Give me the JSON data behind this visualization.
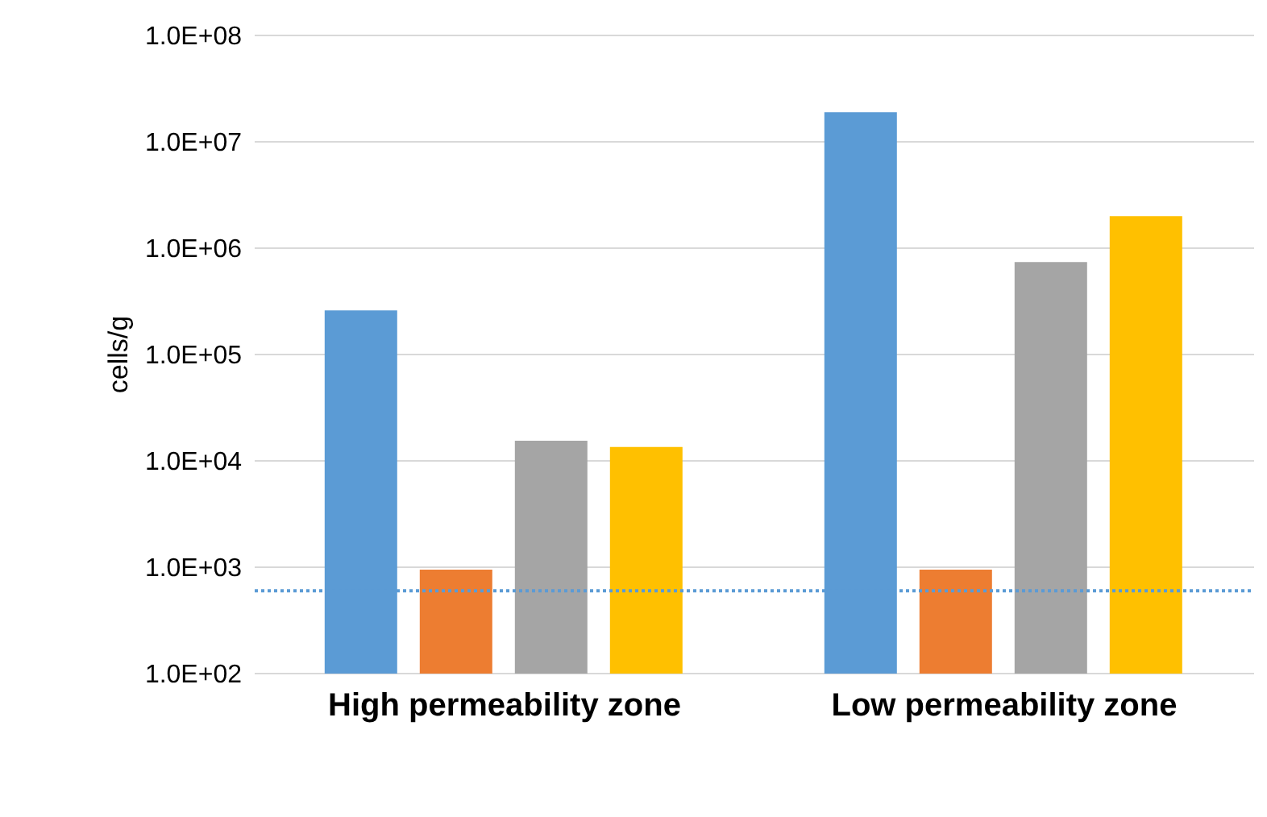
{
  "chart_data": {
    "type": "bar",
    "ylabel": "cells/g",
    "log": true,
    "grid": "y",
    "legend": false,
    "categories": [
      "High permeability zone",
      "Low permeability zone"
    ],
    "series": [
      {
        "color": "#5b9bd5",
        "values": [
          260000,
          19000000
        ]
      },
      {
        "color": "#ed7d31",
        "values": [
          950,
          950
        ]
      },
      {
        "color": "#a5a5a5",
        "values": [
          15500,
          740000
        ]
      },
      {
        "color": "#ffc000",
        "values": [
          13500,
          2000000
        ]
      }
    ],
    "ylim": [
      100,
      100000000
    ],
    "yticks": [
      {
        "value": 100,
        "label": "1.0E+02"
      },
      {
        "value": 1000,
        "label": "1.0E+03"
      },
      {
        "value": 10000,
        "label": "1.0E+04"
      },
      {
        "value": 100000,
        "label": "1.0E+05"
      },
      {
        "value": 1000000,
        "label": "1.0E+06"
      },
      {
        "value": 10000000,
        "label": "1.0E+07"
      },
      {
        "value": 100000000,
        "label": "1.0E+08"
      }
    ],
    "ref_lines": [
      {
        "axis": "y",
        "value": 600,
        "color": "#5b9bd5",
        "line_style": "dotted"
      }
    ]
  }
}
